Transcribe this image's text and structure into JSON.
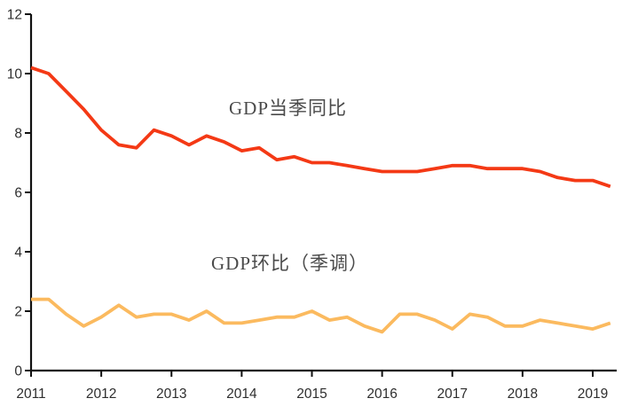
{
  "chart_data": {
    "type": "line",
    "title": "",
    "grid": false,
    "legend_position": "inline-annotations-on-plot",
    "x_axis": {
      "tick_labels": [
        "2011",
        "2012",
        "2013",
        "2014",
        "2015",
        "2016",
        "2017",
        "2018",
        "2019"
      ],
      "frequency": "quarterly",
      "start_period": "2011Q1",
      "end_period": "2019Q2"
    },
    "y_axis": {
      "ticks": [
        0,
        2,
        4,
        6,
        8,
        10,
        12
      ],
      "lim": [
        0,
        12
      ]
    },
    "series": [
      {
        "name": "GDP当季同比",
        "color": "#f43915",
        "values": [
          10.2,
          10.0,
          9.4,
          8.8,
          8.1,
          7.6,
          7.5,
          8.1,
          7.9,
          7.6,
          7.9,
          7.7,
          7.4,
          7.5,
          7.1,
          7.2,
          7.0,
          7.0,
          6.9,
          6.8,
          6.7,
          6.7,
          6.7,
          6.8,
          6.9,
          6.9,
          6.8,
          6.8,
          6.8,
          6.7,
          6.5,
          6.4,
          6.4,
          6.2
        ]
      },
      {
        "name": "GDP环比（季调）",
        "color": "#fbba5f",
        "values": [
          2.4,
          2.4,
          1.9,
          1.5,
          1.8,
          2.2,
          1.8,
          1.9,
          1.9,
          1.7,
          2.0,
          1.6,
          1.6,
          1.7,
          1.8,
          1.8,
          2.0,
          1.7,
          1.8,
          1.5,
          1.3,
          1.9,
          1.9,
          1.7,
          1.4,
          1.9,
          1.8,
          1.5,
          1.5,
          1.7,
          1.6,
          1.5,
          1.4,
          1.6
        ]
      }
    ]
  },
  "colors": {
    "axis": "#111111",
    "tick_label": "#2e2e2e",
    "annotation_text": "#4a4a4a",
    "background": "#ffffff"
  }
}
